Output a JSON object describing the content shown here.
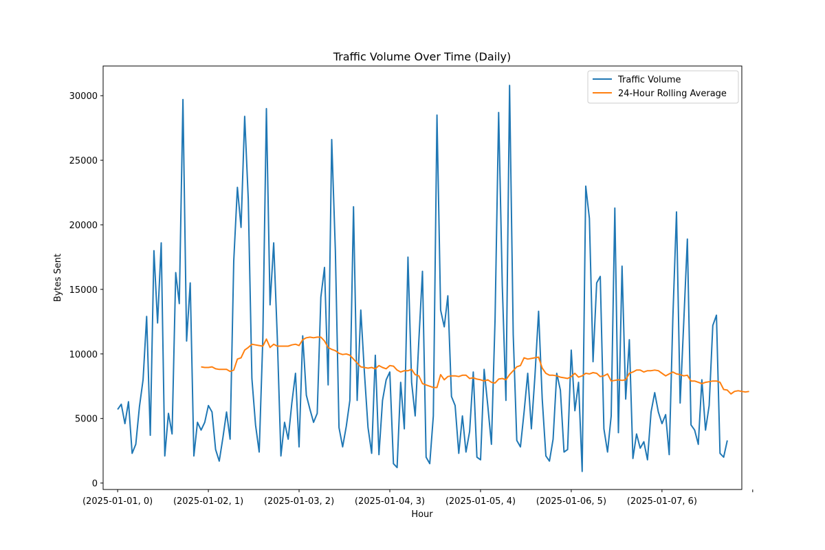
{
  "chart_data": {
    "type": "line",
    "title": "Traffic Volume Over Time (Daily)",
    "xlabel": "Hour",
    "ylabel": "Bytes Sent",
    "ylim": [
      -500,
      32300
    ],
    "yticks": [
      0,
      5000,
      10000,
      15000,
      20000,
      25000,
      30000
    ],
    "xlim": [
      -4,
      172
    ],
    "xticks": [
      {
        "pos": 0,
        "label": "(2025-01-01, 0)"
      },
      {
        "pos": 25,
        "label": "(2025-01-02, 1)"
      },
      {
        "pos": 50,
        "label": "(2025-01-03, 2)"
      },
      {
        "pos": 75,
        "label": "(2025-01-04, 3)"
      },
      {
        "pos": 100,
        "label": "(2025-01-05, 4)"
      },
      {
        "pos": 125,
        "label": "(2025-01-06, 5)"
      },
      {
        "pos": 150,
        "label": "(2025-01-07, 6)"
      },
      {
        "pos": 175,
        "label": ""
      }
    ],
    "grid": false,
    "legend_position": "top-right",
    "series": [
      {
        "name": "Traffic Volume",
        "color": "#1f77b4",
        "values": [
          5700,
          6100,
          4600,
          6300,
          2300,
          3000,
          5900,
          8000,
          12900,
          3700,
          18000,
          12400,
          18600,
          2100,
          5400,
          3800,
          16300,
          13900,
          29700,
          11000,
          15500,
          2100,
          4700,
          4100,
          4700,
          6000,
          5500,
          2600,
          1700,
          3500,
          5500,
          3400,
          17200,
          22900,
          19800,
          28400,
          22000,
          8100,
          4500,
          2400,
          11200,
          29000,
          13800,
          18600,
          11200,
          2100,
          4700,
          3400,
          6200,
          8500,
          2800,
          11400,
          6800,
          5700,
          4700,
          5400,
          14400,
          16700,
          7600,
          26600,
          18000,
          4300,
          2800,
          4400,
          6400,
          21400,
          6400,
          13400,
          8600,
          4300,
          2300,
          9900,
          2200,
          6400,
          8000,
          8600,
          1500,
          1200,
          7800,
          4200,
          17500,
          7800,
          5200,
          11000,
          16400,
          2000,
          1500,
          5200,
          28500,
          13400,
          12100,
          14500,
          6700,
          6000,
          2300,
          5200,
          2400,
          4000,
          8600,
          2000,
          1800,
          8800,
          6000,
          3000,
          12700,
          28700,
          15300,
          6400,
          30800,
          11500,
          3300,
          2800,
          5500,
          8500,
          4200,
          8300,
          13300,
          6500,
          2100,
          1700,
          3400,
          8500,
          7200,
          2400,
          2600,
          10300,
          5600,
          7800,
          900,
          23000,
          20500,
          9400,
          15500,
          16000,
          4200,
          2400,
          5200,
          21300,
          3900,
          16800,
          6500,
          11100,
          1900,
          3800,
          2700,
          3200,
          1800,
          5500,
          7000,
          5500,
          4600,
          5300,
          2200,
          12800,
          21000,
          6200,
          12400,
          18900,
          4500,
          4100,
          3000,
          8000,
          4100,
          6000,
          12200,
          13000,
          2300,
          2000,
          3300
        ]
      },
      {
        "name": "24-Hour Rolling Average",
        "color": "#ff7f0e",
        "start": 23,
        "values": [
          9000,
          8950,
          8950,
          9000,
          8850,
          8800,
          8800,
          8800,
          8650,
          8750,
          9600,
          9700,
          10300,
          10500,
          10750,
          10700,
          10650,
          10600,
          11150,
          10500,
          10750,
          10600,
          10600,
          10600,
          10600,
          10700,
          10750,
          10650,
          11100,
          11250,
          11300,
          11250,
          11300,
          11300,
          11000,
          10500,
          10350,
          10250,
          10050,
          9950,
          10000,
          9900,
          9600,
          9300,
          9000,
          8950,
          8900,
          8950,
          8850,
          9100,
          8950,
          8850,
          9100,
          9050,
          8750,
          8600,
          8700,
          8700,
          8800,
          8400,
          8300,
          7700,
          7600,
          7500,
          7400,
          7400,
          8400,
          8000,
          8250,
          8300,
          8300,
          8250,
          8350,
          8350,
          8100,
          8150,
          8050,
          8000,
          7900,
          8000,
          7800,
          7750,
          8050,
          8100,
          8000,
          8400,
          8700,
          9000,
          9100,
          9700,
          9600,
          9650,
          9700,
          9750,
          8900,
          8500,
          8350,
          8350,
          8300,
          8200,
          8150,
          8100,
          8250,
          8500,
          8200,
          8300,
          8500,
          8450,
          8550,
          8500,
          8250,
          8300,
          8450,
          7900,
          7950,
          8000,
          7950,
          8000,
          8500,
          8600,
          8750,
          8750,
          8600,
          8700,
          8700,
          8750,
          8700,
          8500,
          8300,
          8450,
          8600,
          8450,
          8400,
          8300,
          8350,
          7900,
          7900,
          7800,
          7700,
          7800,
          7850,
          7900,
          7900,
          7800,
          7250,
          7200,
          6900,
          7100,
          7150,
          7100,
          7050,
          7100
        ]
      }
    ]
  }
}
